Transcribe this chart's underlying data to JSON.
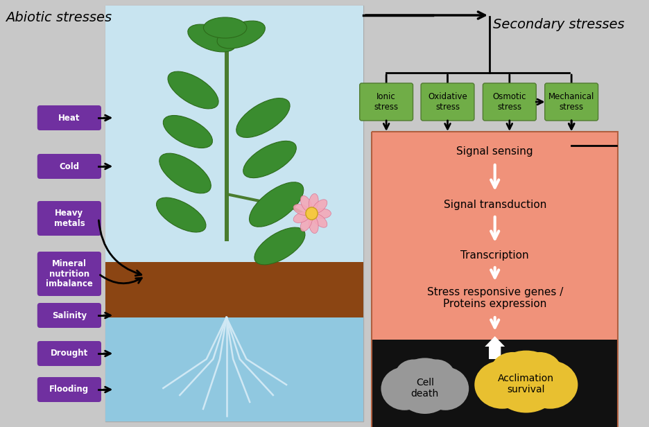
{
  "bg_color": "#c8c8c8",
  "plant_bg_color": "#b8dde8",
  "abiotic_title": "Abiotic stresses",
  "secondary_title": "Secondary stresses",
  "abiotic_labels": [
    "Heat",
    "Cold",
    "Heavy\nmetals",
    "Mineral\nnutrition\nimbalance",
    "Salinity",
    "Drought",
    "Flooding"
  ],
  "purple_box_color": "#7030a0",
  "green_box_color": "#70ad47",
  "green_box_edge": "#507a30",
  "secondary_stresses": [
    "Ionic\nstress",
    "Oxidative\nstress",
    "Osmotic\nstress",
    "Mechanical\nstress"
  ],
  "signal_steps": [
    "Signal sensing",
    "Signal transduction",
    "Transcription",
    "Stress responsive genes /\nProteins expression"
  ],
  "salmon_box_color": "#f0927a",
  "black_section_color": "#111111",
  "cell_death_color": "#989898",
  "acclimation_color": "#e8c030",
  "sky_color": "#c8e4f0",
  "soil_color": "#8B4513",
  "water_color": "#90c8e0"
}
